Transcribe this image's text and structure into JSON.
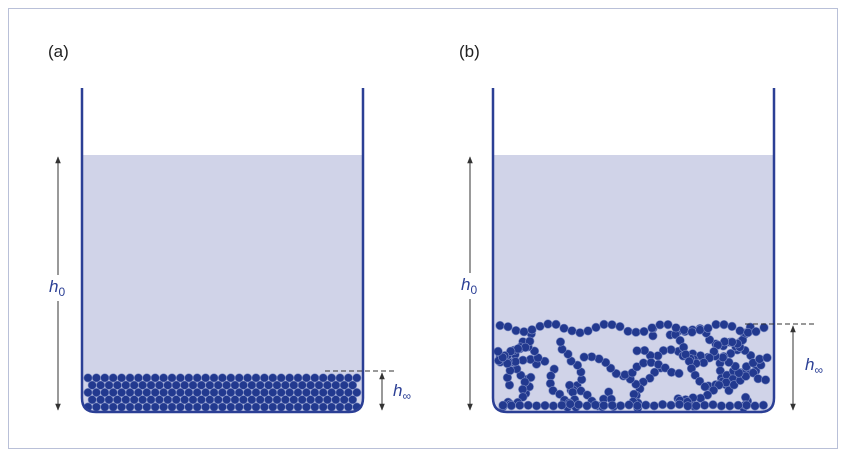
{
  "panels": [
    {
      "label": "(a)",
      "height_label": {
        "symbol": "h",
        "subscript": "0"
      },
      "settled_label": {
        "symbol": "h",
        "subscript": "∞"
      }
    },
    {
      "label": "(b)",
      "height_label": {
        "symbol": "h",
        "subscript": "0"
      },
      "settled_label": {
        "symbol": "h",
        "subscript": "∞"
      }
    }
  ]
}
